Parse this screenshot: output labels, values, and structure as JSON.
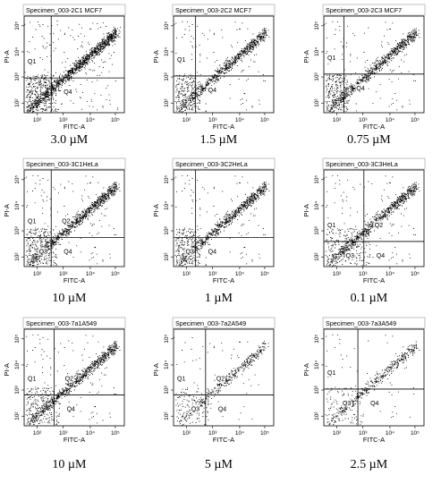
{
  "chart_data": [
    {
      "type": "scatter",
      "title": "Specimen_003-2C1 MCF7",
      "xlabel": "FITC-A",
      "ylabel": "PI-A",
      "quadrant_labels": [
        "Q1",
        "",
        "",
        "Q4"
      ],
      "condition": "3.0 µM",
      "density": "high",
      "x_ticks": [
        "10²",
        "10³",
        "10⁴",
        "10⁵"
      ],
      "y_ticks": [
        "10²",
        "10³",
        "10⁴",
        "10⁵"
      ]
    },
    {
      "type": "scatter",
      "title": "Specimen_003-2C2 MCF7",
      "xlabel": "FITC-A",
      "ylabel": "PI-A",
      "quadrant_labels": [
        "Q1",
        "",
        "",
        "Q4"
      ],
      "condition": "1.5 µM",
      "density": "medium",
      "x_ticks": [
        "10²",
        "10³",
        "10⁴",
        "10⁵"
      ],
      "y_ticks": [
        "10²",
        "10³",
        "10⁴",
        "10⁵"
      ]
    },
    {
      "type": "scatter",
      "title": "Specimen_003-2C3 MCF7",
      "xlabel": "FITC-A",
      "ylabel": "PI-A",
      "quadrant_labels": [
        "Q1",
        "",
        "",
        "Q4"
      ],
      "condition": "0.75 µM",
      "density": "medium",
      "x_ticks": [
        "10²",
        "10³",
        "10⁴",
        "10⁵"
      ],
      "y_ticks": [
        "10²",
        "10³",
        "10⁴",
        "10⁵"
      ]
    },
    {
      "type": "scatter",
      "title": "Specimen_003-3C1HeLa",
      "xlabel": "FITC-A",
      "ylabel": "PI-A",
      "quadrant_labels": [
        "Q1",
        "Q2",
        "Q3",
        "Q4"
      ],
      "condition": "10 µM",
      "density": "high",
      "x_ticks": [
        "10²",
        "10³",
        "10⁴",
        "10⁵"
      ],
      "y_ticks": [
        "10²",
        "10³",
        "10⁴",
        "10⁵"
      ]
    },
    {
      "type": "scatter",
      "title": "Specimen_003-3C2HeLa",
      "xlabel": "FITC-A",
      "ylabel": "PI-A",
      "quadrant_labels": [
        "",
        "",
        "Q3",
        "Q4"
      ],
      "condition": "1 µM",
      "density": "medium",
      "x_ticks": [
        "10²",
        "10³",
        "10⁴",
        "10⁵"
      ],
      "y_ticks": [
        "10²",
        "10³",
        "10⁴",
        "10⁵"
      ]
    },
    {
      "type": "scatter",
      "title": "Specimen_003-3C3HeLa",
      "xlabel": "FITC-A",
      "ylabel": "PI-A",
      "quadrant_labels": [
        "Q1",
        "Q2",
        "Q3",
        "Q4"
      ],
      "condition": "0.1 µM",
      "density": "medium",
      "x_ticks": [
        "10²",
        "10³",
        "10⁴",
        "10⁵"
      ],
      "y_ticks": [
        "10²",
        "10³",
        "10⁴",
        "10⁵"
      ]
    },
    {
      "type": "scatter",
      "title": "Specimen_003-7a1A549",
      "xlabel": "FITC-A",
      "ylabel": "PI-A",
      "quadrant_labels": [
        "Q1",
        "Q2",
        "",
        "Q4"
      ],
      "condition": "10 µM",
      "density": "medium",
      "x_ticks": [
        "10²",
        "10³",
        "10⁴",
        "10⁵"
      ],
      "y_ticks": [
        "10²",
        "10³",
        "10⁴",
        "10⁵"
      ]
    },
    {
      "type": "scatter",
      "title": "Specimen_003-7a2A549",
      "xlabel": "FITC-A",
      "ylabel": "PI-A",
      "quadrant_labels": [
        "Q1",
        "Q2",
        "Q3",
        "Q4"
      ],
      "condition": "5 µM",
      "density": "low",
      "x_ticks": [
        "10²",
        "10³",
        "10⁴",
        "10⁵"
      ],
      "y_ticks": [
        "10²",
        "10³",
        "10⁴",
        "10⁵"
      ]
    },
    {
      "type": "scatter",
      "title": "Specimen_003-7a3A549",
      "xlabel": "FITC-A",
      "ylabel": "PI-A",
      "quadrant_labels": [
        "Q1",
        "",
        "Q3",
        "Q4"
      ],
      "condition": "2.5 µM",
      "density": "low",
      "x_ticks": [
        "10²",
        "10³",
        "10⁴",
        "10⁵"
      ],
      "y_ticks": [
        "10²",
        "10³",
        "10⁴",
        "10⁵"
      ]
    }
  ]
}
